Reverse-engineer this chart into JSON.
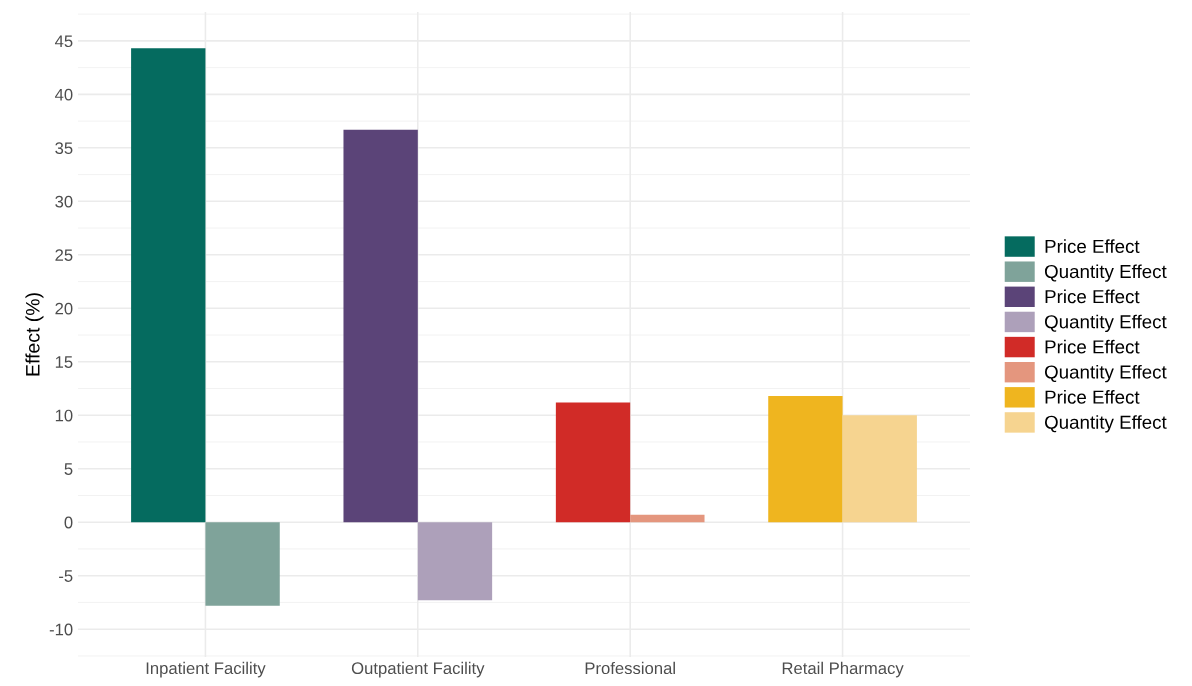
{
  "chart_data": {
    "type": "bar",
    "ylabel": "Effect (%)",
    "categories": [
      "Inpatient Facility",
      "Outpatient Facility",
      "Professional",
      "Retail Pharmacy"
    ],
    "series": [
      {
        "name": "Price Effect",
        "color": "#056b5f",
        "values": [
          44.3,
          null,
          null,
          null
        ]
      },
      {
        "name": "Quantity Effect",
        "color": "#7fa39a",
        "values": [
          -7.8,
          null,
          null,
          null
        ]
      },
      {
        "name": "Price Effect",
        "color": "#5b4478",
        "values": [
          null,
          36.7,
          null,
          null
        ]
      },
      {
        "name": "Quantity Effect",
        "color": "#ada0ba",
        "values": [
          null,
          -7.3,
          null,
          null
        ]
      },
      {
        "name": "Price Effect",
        "color": "#d12b27",
        "values": [
          null,
          null,
          11.2,
          null
        ]
      },
      {
        "name": "Quantity Effect",
        "color": "#e4967e",
        "values": [
          null,
          null,
          0.7,
          null
        ]
      },
      {
        "name": "Price Effect",
        "color": "#efb51f",
        "values": [
          null,
          null,
          null,
          11.8
        ]
      },
      {
        "name": "Quantity Effect",
        "color": "#f6d490",
        "values": [
          null,
          null,
          null,
          10.0
        ]
      }
    ],
    "ylim": [
      -12.6,
      47.7
    ],
    "yticks": [
      -10,
      -5,
      0,
      5,
      10,
      15,
      20,
      25,
      30,
      35,
      40,
      45
    ],
    "grid": true,
    "legend": "right"
  }
}
